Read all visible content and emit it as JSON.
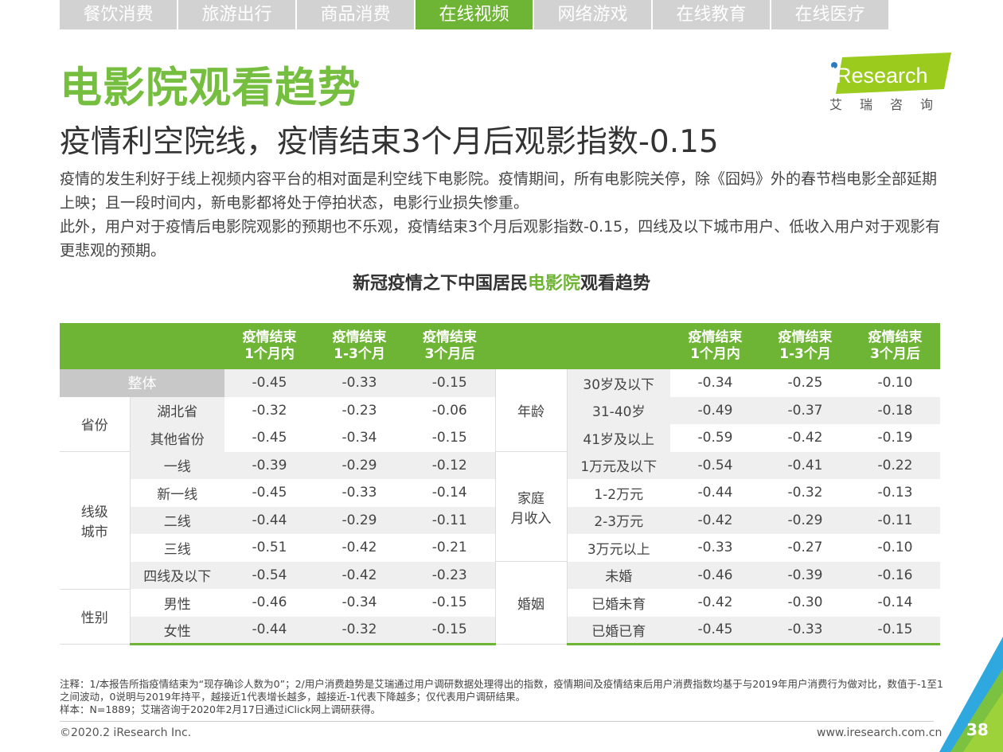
{
  "tabs": [
    {
      "label": "餐饮消费"
    },
    {
      "label": "旅游出行"
    },
    {
      "label": "商品消费"
    },
    {
      "label": "在线视频"
    },
    {
      "label": "网络游戏"
    },
    {
      "label": "在线教育"
    },
    {
      "label": "在线医疗"
    }
  ],
  "active_tab": 3,
  "title": "电影院观看趋势",
  "subtitle": "疫情利空院线，疫情结束3个月后观影指数-0.15",
  "logo": {
    "brand": "iResearch",
    "cn": "艾瑞咨询"
  },
  "paragraph1": "疫情的发生利好于线上视频内容平台的相对面是利空线下电影院。疫情期间，所有电影院关停，除《囧妈》外的春节档电影全部延期上映；且一段时间内，新电影都将处于停拍状态，电影行业损失惨重。",
  "paragraph2": "此外，用户对于疫情后电影院观影的预期也不乐观，疫情结束3个月后观影指数-0.15，四线及以下城市用户、低收入用户对于观影有更悲观的预期。",
  "table_title": {
    "pre": "新冠疫情之下中国居民",
    "hl": "电影院",
    "post": "观看趋势"
  },
  "headers": [
    {
      "l1": "疫情结束",
      "l2": "1个月内"
    },
    {
      "l1": "疫情结束",
      "l2": "1-3个月"
    },
    {
      "l1": "疫情结束",
      "l2": "3个月后"
    }
  ],
  "left_groups": {
    "overall": "整体",
    "province": "省份",
    "city": "线级城市",
    "gender": "性别"
  },
  "right_groups": {
    "age": "年龄",
    "income": "家庭月收入",
    "marriage": "婚姻"
  },
  "left_rows": [
    {
      "label": "整体",
      "v": [
        "-0.45",
        "-0.33",
        "-0.15"
      ]
    },
    {
      "label": "湖北省",
      "v": [
        "-0.32",
        "-0.23",
        "-0.06"
      ]
    },
    {
      "label": "其他省份",
      "v": [
        "-0.45",
        "-0.34",
        "-0.15"
      ]
    },
    {
      "label": "一线",
      "v": [
        "-0.39",
        "-0.29",
        "-0.12"
      ]
    },
    {
      "label": "新一线",
      "v": [
        "-0.45",
        "-0.33",
        "-0.14"
      ]
    },
    {
      "label": "二线",
      "v": [
        "-0.44",
        "-0.29",
        "-0.11"
      ]
    },
    {
      "label": "三线",
      "v": [
        "-0.51",
        "-0.42",
        "-0.21"
      ]
    },
    {
      "label": "四线及以下",
      "v": [
        "-0.54",
        "-0.42",
        "-0.23"
      ]
    },
    {
      "label": "男性",
      "v": [
        "-0.46",
        "-0.34",
        "-0.15"
      ]
    },
    {
      "label": "女性",
      "v": [
        "-0.44",
        "-0.32",
        "-0.15"
      ]
    }
  ],
  "right_rows": [
    {
      "label": "30岁及以下",
      "v": [
        "-0.34",
        "-0.25",
        "-0.10"
      ]
    },
    {
      "label": "31-40岁",
      "v": [
        "-0.49",
        "-0.37",
        "-0.18"
      ]
    },
    {
      "label": "41岁及以上",
      "v": [
        "-0.59",
        "-0.42",
        "-0.19"
      ]
    },
    {
      "label": "1万元及以下",
      "v": [
        "-0.54",
        "-0.41",
        "-0.22"
      ]
    },
    {
      "label": "1-2万元",
      "v": [
        "-0.44",
        "-0.32",
        "-0.13"
      ]
    },
    {
      "label": "2-3万元",
      "v": [
        "-0.42",
        "-0.29",
        "-0.11"
      ]
    },
    {
      "label": "3万元以上",
      "v": [
        "-0.33",
        "-0.27",
        "-0.10"
      ]
    },
    {
      "label": "未婚",
      "v": [
        "-0.46",
        "-0.39",
        "-0.16"
      ]
    },
    {
      "label": "已婚未育",
      "v": [
        "-0.42",
        "-0.30",
        "-0.14"
      ]
    },
    {
      "label": "已婚已育",
      "v": [
        "-0.45",
        "-0.33",
        "-0.15"
      ]
    }
  ],
  "notes": "注释：1/本报告所指疫情结束为“现存确诊人数为0”；2/用户消费趋势是艾瑞通过用户调研数据处理得出的指数，疫情期间及疫情结束后用户消费指数均基于与2019年用户消费行为做对比，数值于-1至1之间波动，0说明与2019年持平，越接近1代表增长越多，越接近-1代表下降越多；仅代表用户调研结果。",
  "sample": "样本：N=1889；艾瑞咨询于2020年2月17日通过iClick网上调研获得。",
  "copyright": "©2020.2 iResearch Inc.",
  "website": "www.iresearch.com.cn",
  "page_number": "38",
  "colors": {
    "accent": "#6fb535",
    "title": "#76be3f",
    "tab_inactive": "#d2d2d2"
  }
}
